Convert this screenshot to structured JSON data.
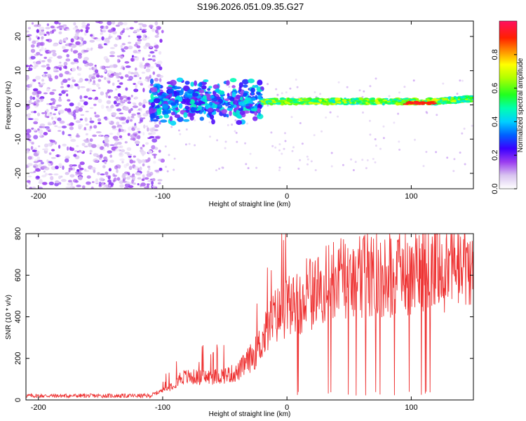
{
  "title": "S196.2026.051.09.35.G27",
  "chart_data": [
    {
      "type": "heatmap",
      "name": "spectrogram",
      "xlabel": "Height of straight line (km)",
      "ylabel": "Frequency (Hz)",
      "xlim": [
        -210,
        150
      ],
      "ylim": [
        -24.5,
        24.5
      ],
      "xticks": [
        -200,
        -100,
        0,
        100
      ],
      "yticks": [
        -20,
        -10,
        0,
        10,
        20
      ],
      "colorbar": {
        "label": "Normalized spectral amplitude",
        "range": [
          0,
          1
        ],
        "ticks": [
          0.0,
          0.2,
          0.4,
          0.6,
          0.8
        ]
      },
      "regions": [
        {
          "name": "noise",
          "x": [
            -210,
            -100
          ],
          "freq": [
            -24.5,
            24.5
          ],
          "amplitude": 0.1
        },
        {
          "name": "onset",
          "x": [
            -110,
            -20
          ],
          "freq": [
            -6,
            6
          ],
          "amplitude": 0.3
        },
        {
          "name": "signal-line",
          "x": [
            -20,
            150
          ],
          "freq": [
            -1,
            2
          ],
          "amplitude": 0.6
        },
        {
          "name": "peak",
          "x": [
            95,
            120
          ],
          "freq": [
            0,
            1
          ],
          "amplitude": 0.95
        }
      ]
    },
    {
      "type": "line",
      "name": "snr",
      "xlabel": "Height of straight line (km)",
      "ylabel": "SNR (10 * v/v)",
      "xlim": [
        -210,
        150
      ],
      "ylim": [
        0,
        800
      ],
      "xticks": [
        -200,
        -100,
        0,
        100
      ],
      "yticks": [
        0,
        200,
        400,
        600,
        800
      ],
      "color": "#ee3333",
      "profile": [
        {
          "x": -210,
          "y": 20
        },
        {
          "x": -110,
          "y": 20
        },
        {
          "x": -95,
          "y": 60
        },
        {
          "x": -85,
          "y": 110
        },
        {
          "x": -60,
          "y": 110
        },
        {
          "x": -40,
          "y": 130
        },
        {
          "x": -25,
          "y": 230
        },
        {
          "x": -10,
          "y": 400
        },
        {
          "x": 10,
          "y": 480
        },
        {
          "x": 25,
          "y": 530
        },
        {
          "x": 40,
          "y": 580
        },
        {
          "x": 60,
          "y": 600
        },
        {
          "x": 80,
          "y": 605
        },
        {
          "x": 100,
          "y": 620
        },
        {
          "x": 120,
          "y": 630
        },
        {
          "x": 150,
          "y": 640
        }
      ]
    }
  ]
}
